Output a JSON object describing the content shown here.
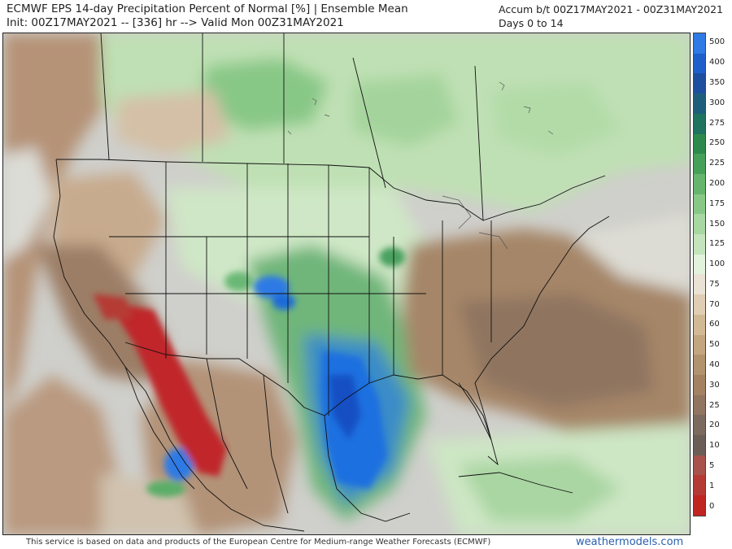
{
  "header": {
    "title_line1": "ECMWF EPS 14-day Precipitation Percent of Normal [%] | Ensemble Mean",
    "title_line2": "Init: 00Z17MAY2021 -- [336] hr --> Valid Mon 00Z31MAY2021",
    "accum_line1": "Accum b/t 00Z17MAY2021 - 00Z31MAY2021",
    "accum_line2": "Days 0 to 14"
  },
  "colorbar": {
    "labels": [
      "500",
      "400",
      "350",
      "300",
      "275",
      "250",
      "225",
      "200",
      "175",
      "150",
      "125",
      "100",
      "75",
      "70",
      "60",
      "50",
      "40",
      "30",
      "25",
      "20",
      "10",
      "5",
      "1",
      "0"
    ],
    "colors": [
      "#2f7ae5",
      "#1f5fc9",
      "#1d4f9e",
      "#1f5e7a",
      "#20735e",
      "#2e8a4c",
      "#46a05a",
      "#66b56e",
      "#88c887",
      "#a8d8a2",
      "#c4e5bb",
      "#e2f2dc",
      "#eae2d4",
      "#e0ceb4",
      "#d2b995",
      "#c3a581",
      "#b2936f",
      "#a38263",
      "#927560",
      "#7d6a5e",
      "#6a5e56",
      "#a8524e",
      "#b53a36",
      "#c02522"
    ]
  },
  "legend_colors": {
    "very_wet": "#1f6ee0",
    "wet": "#4aa05e",
    "above_normal": "#b7dfb0",
    "near_normal": "#e6e6e0",
    "dry": "#b08a6c",
    "very_dry": "#7a685e",
    "extreme_dry": "#c0282a"
  },
  "footer": {
    "credit": "This service is based on data and products of the European Centre for Medium-range Weather Forecasts (ECMWF)",
    "brand": "weathermodels.com"
  }
}
